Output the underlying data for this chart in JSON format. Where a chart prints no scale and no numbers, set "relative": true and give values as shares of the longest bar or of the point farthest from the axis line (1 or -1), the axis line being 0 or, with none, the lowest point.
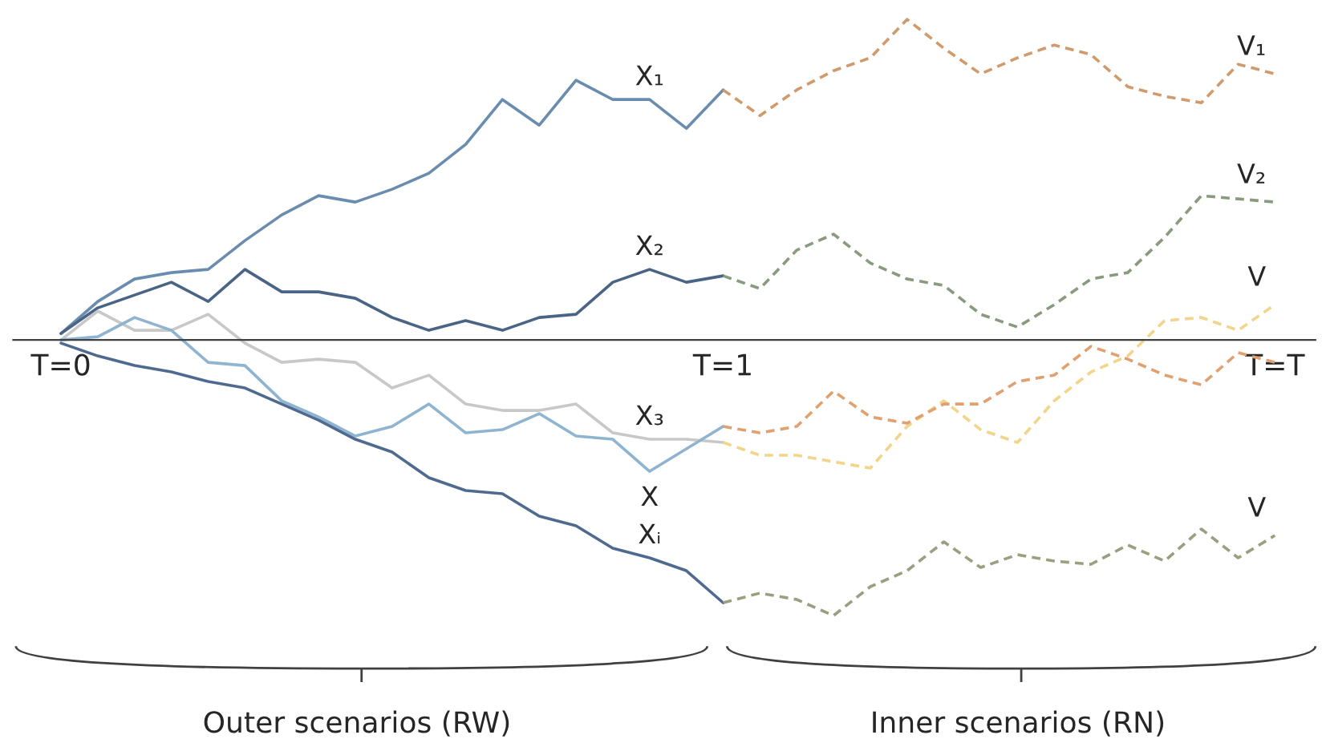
{
  "chart_data": {
    "type": "line",
    "relative": true,
    "legend": false,
    "categories": [
      "T=0",
      null,
      null,
      null,
      null,
      null,
      null,
      null,
      null,
      null,
      null,
      null,
      null,
      null,
      null,
      null,
      null,
      null,
      "T=1",
      null,
      null,
      null,
      null,
      null,
      null,
      null,
      null,
      null,
      null,
      null,
      null,
      null,
      null,
      "T=T"
    ],
    "series": [
      {
        "name": "X₁",
        "color": "#6a8caf",
        "line_style": "solid",
        "values": [
          0.02,
          0.12,
          0.19,
          0.21,
          0.22,
          0.31,
          0.39,
          0.45,
          0.43,
          0.47,
          0.52,
          0.61,
          0.75,
          0.67,
          0.81,
          0.75,
          0.75,
          0.66,
          0.78,
          null,
          null,
          null,
          null,
          null,
          null,
          null,
          null,
          null,
          null,
          null,
          null,
          null,
          null,
          null
        ]
      },
      {
        "name": "X₂",
        "color": "#4a6485",
        "line_style": "solid",
        "values": [
          0.02,
          0.1,
          0.14,
          0.18,
          0.12,
          0.22,
          0.15,
          0.15,
          0.13,
          0.07,
          0.03,
          0.06,
          0.03,
          0.07,
          0.08,
          0.18,
          0.22,
          0.18,
          0.2,
          null,
          null,
          null,
          null,
          null,
          null,
          null,
          null,
          null,
          null,
          null,
          null,
          null,
          null,
          null
        ]
      },
      {
        "name": "X₃",
        "color": "#c8c8c8",
        "line_style": "solid",
        "values": [
          0.0,
          0.09,
          0.03,
          0.03,
          0.08,
          -0.01,
          -0.07,
          -0.06,
          -0.07,
          -0.15,
          -0.11,
          -0.2,
          -0.22,
          -0.22,
          -0.2,
          -0.29,
          -0.31,
          -0.31,
          -0.32,
          null,
          null,
          null,
          null,
          null,
          null,
          null,
          null,
          null,
          null,
          null,
          null,
          null,
          null,
          null
        ]
      },
      {
        "name": "X",
        "color": "#8fb4d0",
        "line_style": "solid",
        "values": [
          0.0,
          0.01,
          0.07,
          0.03,
          -0.07,
          -0.08,
          -0.19,
          -0.24,
          -0.3,
          -0.27,
          -0.2,
          -0.29,
          -0.28,
          -0.23,
          -0.3,
          -0.31,
          -0.41,
          -0.34,
          -0.27,
          null,
          null,
          null,
          null,
          null,
          null,
          null,
          null,
          null,
          null,
          null,
          null,
          null,
          null,
          null
        ]
      },
      {
        "name": "Xᵢ",
        "color": "#4f6a8f",
        "line_style": "solid",
        "values": [
          -0.01,
          -0.05,
          -0.08,
          -0.1,
          -0.13,
          -0.15,
          -0.2,
          -0.25,
          -0.31,
          -0.35,
          -0.43,
          -0.47,
          -0.48,
          -0.55,
          -0.58,
          -0.65,
          -0.68,
          -0.72,
          -0.82,
          null,
          null,
          null,
          null,
          null,
          null,
          null,
          null,
          null,
          null,
          null,
          null,
          null,
          null,
          null
        ]
      },
      {
        "name": "V₁",
        "color": "#d09a6c",
        "line_style": "dashed",
        "values": [
          null,
          null,
          null,
          null,
          null,
          null,
          null,
          null,
          null,
          null,
          null,
          null,
          null,
          null,
          null,
          null,
          null,
          null,
          0.78,
          0.7,
          0.78,
          0.84,
          0.88,
          1.0,
          0.91,
          0.83,
          0.88,
          0.92,
          0.89,
          0.79,
          0.76,
          0.74,
          0.86,
          0.83
        ]
      },
      {
        "name": "V₂",
        "color": "#8a9a7f",
        "line_style": "dashed",
        "values": [
          null,
          null,
          null,
          null,
          null,
          null,
          null,
          null,
          null,
          null,
          null,
          null,
          null,
          null,
          null,
          null,
          null,
          null,
          0.2,
          0.16,
          0.28,
          0.33,
          0.24,
          0.19,
          0.17,
          0.08,
          0.04,
          0.11,
          0.19,
          0.21,
          0.32,
          0.45,
          0.44,
          0.43
        ]
      },
      {
        "name": "V",
        "color": "#f2d58a",
        "line_style": "dashed",
        "values": [
          null,
          null,
          null,
          null,
          null,
          null,
          null,
          null,
          null,
          null,
          null,
          null,
          null,
          null,
          null,
          null,
          null,
          null,
          -0.32,
          -0.36,
          -0.36,
          -0.38,
          -0.4,
          -0.27,
          -0.19,
          -0.28,
          -0.32,
          -0.19,
          -0.1,
          -0.05,
          0.06,
          0.07,
          0.03,
          0.11
        ]
      },
      {
        "color": "#e0a070",
        "line_style": "dashed",
        "values": [
          null,
          null,
          null,
          null,
          null,
          null,
          null,
          null,
          null,
          null,
          null,
          null,
          null,
          null,
          null,
          null,
          null,
          null,
          -0.27,
          -0.29,
          -0.27,
          -0.16,
          -0.24,
          -0.26,
          -0.2,
          -0.2,
          -0.13,
          -0.11,
          -0.02,
          -0.06,
          -0.11,
          -0.14,
          -0.04,
          -0.07
        ]
      },
      {
        "name": "V",
        "color": "#9aa07f",
        "line_style": "dashed",
        "values": [
          null,
          null,
          null,
          null,
          null,
          null,
          null,
          null,
          null,
          null,
          null,
          null,
          null,
          null,
          null,
          null,
          null,
          null,
          -0.82,
          -0.79,
          -0.81,
          -0.86,
          -0.77,
          -0.72,
          -0.63,
          -0.71,
          -0.67,
          -0.69,
          -0.7,
          -0.64,
          -0.69,
          -0.59,
          -0.68,
          -0.61
        ]
      }
    ],
    "annotations": [
      "Outer scenarios (RW)",
      "Inner scenarios (RN)"
    ]
  }
}
